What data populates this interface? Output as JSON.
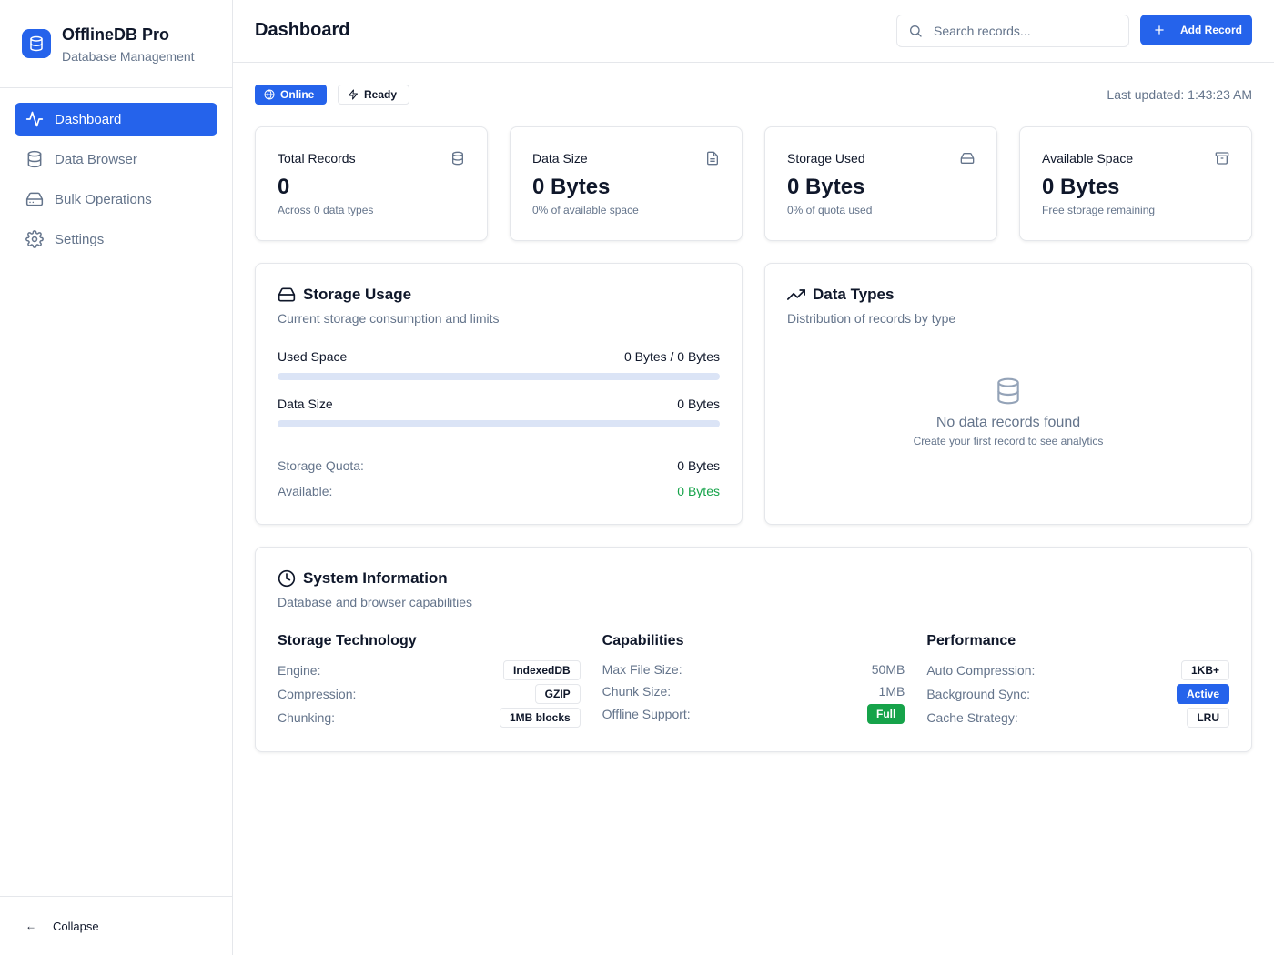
{
  "brand": {
    "title": "OfflineDB Pro",
    "subtitle": "Database Management"
  },
  "nav": {
    "items": [
      {
        "label": "Dashboard",
        "icon": "activity-icon",
        "active": true
      },
      {
        "label": "Data Browser",
        "icon": "database-icon",
        "active": false
      },
      {
        "label": "Bulk Operations",
        "icon": "hard-drive-icon",
        "active": false
      },
      {
        "label": "Settings",
        "icon": "gear-icon",
        "active": false
      }
    ],
    "collapse_label": "Collapse",
    "collapse_arrow": "←"
  },
  "header": {
    "title": "Dashboard",
    "search_placeholder": "Search records...",
    "add_label": "Add Record"
  },
  "status": {
    "online_label": "Online",
    "ready_label": "Ready",
    "last_updated": "Last updated: 1:43:23 AM"
  },
  "stats": [
    {
      "title": "Total Records",
      "value": "0",
      "desc": "Across 0 data types",
      "icon": "database-icon"
    },
    {
      "title": "Data Size",
      "value": "0 Bytes",
      "desc": "0% of available space",
      "icon": "file-icon"
    },
    {
      "title": "Storage Used",
      "value": "0 Bytes",
      "desc": "0% of quota used",
      "icon": "hard-drive-icon"
    },
    {
      "title": "Available Space",
      "value": "0 Bytes",
      "desc": "Free storage remaining",
      "icon": "archive-icon"
    }
  ],
  "storage": {
    "title": "Storage Usage",
    "subtitle": "Current storage consumption and limits",
    "used_label": "Used Space",
    "used_value": "0 Bytes / 0 Bytes",
    "used_fraction": 0,
    "data_label": "Data Size",
    "data_value": "0 Bytes",
    "data_fraction": 0,
    "quota_label": "Storage Quota:",
    "quota_value": "0 Bytes",
    "available_label": "Available:",
    "available_value": "0 Bytes"
  },
  "types": {
    "title": "Data Types",
    "subtitle": "Distribution of records by type",
    "empty_title": "No data records found",
    "empty_sub": "Create your first record to see analytics"
  },
  "system": {
    "title": "System Information",
    "subtitle": "Database and browser capabilities",
    "storage_tech": {
      "title": "Storage Technology",
      "engine_label": "Engine:",
      "engine_value": "IndexedDB",
      "compression_label": "Compression:",
      "compression_value": "GZIP",
      "chunking_label": "Chunking:",
      "chunking_value": "1MB blocks"
    },
    "capabilities": {
      "title": "Capabilities",
      "max_file_label": "Max File Size:",
      "max_file_value": "50MB",
      "chunk_label": "Chunk Size:",
      "chunk_value": "1MB",
      "offline_label": "Offline Support:",
      "offline_value": "Full"
    },
    "performance": {
      "title": "Performance",
      "auto_label": "Auto Compression:",
      "auto_value": "1KB+",
      "sync_label": "Background Sync:",
      "sync_value": "Active",
      "cache_label": "Cache Strategy:",
      "cache_value": "LRU"
    }
  },
  "colors": {
    "accent": "#2563eb",
    "success": "#16a34a",
    "muted": "#64748b",
    "border": "#e5e7eb"
  }
}
